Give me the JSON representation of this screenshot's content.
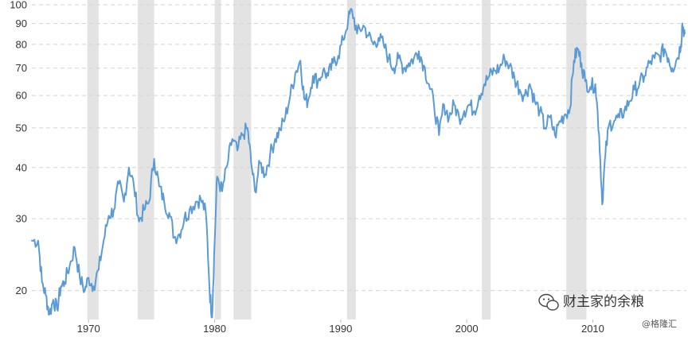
{
  "chart_data": {
    "type": "line",
    "title": "",
    "xlabel": "",
    "ylabel": "",
    "y_scale": "log",
    "ylim": [
      17,
      100
    ],
    "xlim": [
      1965.5,
      2017.3
    ],
    "grid": "horizontal-dashed",
    "y_ticks": [
      {
        "value": 20,
        "label": "20"
      },
      {
        "value": 30,
        "label": "30"
      },
      {
        "value": 40,
        "label": "40"
      },
      {
        "value": 50,
        "label": "50"
      },
      {
        "value": 60,
        "label": "60"
      },
      {
        "value": 70,
        "label": "70"
      },
      {
        "value": 80,
        "label": "80"
      },
      {
        "value": 90,
        "label": "90"
      },
      {
        "value": 100,
        "label": "100"
      }
    ],
    "x_ticks": [
      {
        "value": 1970,
        "label": "1970"
      },
      {
        "value": 1980,
        "label": "1980"
      },
      {
        "value": 1990,
        "label": "1990"
      },
      {
        "value": 2000,
        "label": "2000"
      },
      {
        "value": 2010,
        "label": "2010"
      }
    ],
    "recessions": [
      [
        1969.9,
        1970.8
      ],
      [
        1973.9,
        1975.2
      ],
      [
        1980.0,
        1980.5
      ],
      [
        1981.5,
        1982.9
      ],
      [
        1990.5,
        1991.2
      ],
      [
        2001.2,
        2001.9
      ],
      [
        2007.9,
        2009.5
      ]
    ],
    "series": [
      {
        "color": "#5b9bd5",
        "points": [
          [
            1965.5,
            26.5
          ],
          [
            1966.0,
            26.5
          ],
          [
            1966.3,
            21.0
          ],
          [
            1966.6,
            19.5
          ],
          [
            1966.9,
            17.5
          ],
          [
            1967.2,
            19.0
          ],
          [
            1967.5,
            18.0
          ],
          [
            1967.8,
            20.5
          ],
          [
            1968.1,
            21.0
          ],
          [
            1968.5,
            23.0
          ],
          [
            1968.9,
            25.5
          ],
          [
            1969.3,
            21.5
          ],
          [
            1969.7,
            20.0
          ],
          [
            1970.0,
            21.5
          ],
          [
            1970.4,
            20.5
          ],
          [
            1970.8,
            22.5
          ],
          [
            1971.2,
            26.5
          ],
          [
            1971.6,
            30.5
          ],
          [
            1972.0,
            31.5
          ],
          [
            1972.4,
            36.5
          ],
          [
            1972.8,
            33.0
          ],
          [
            1973.2,
            40.0
          ],
          [
            1973.6,
            36.0
          ],
          [
            1974.0,
            29.5
          ],
          [
            1974.4,
            31.5
          ],
          [
            1974.8,
            33.0
          ],
          [
            1975.2,
            42.0
          ],
          [
            1975.6,
            36.0
          ],
          [
            1976.0,
            33.0
          ],
          [
            1976.4,
            31.0
          ],
          [
            1976.8,
            27.0
          ],
          [
            1977.2,
            27.5
          ],
          [
            1977.6,
            30.0
          ],
          [
            1978.0,
            31.5
          ],
          [
            1978.5,
            33.0
          ],
          [
            1978.9,
            33.5
          ],
          [
            1979.3,
            31.0
          ],
          [
            1979.6,
            20.0
          ],
          [
            1979.8,
            17.2
          ],
          [
            1980.0,
            26.0
          ],
          [
            1980.2,
            38.0
          ],
          [
            1980.6,
            35.0
          ],
          [
            1981.0,
            40.5
          ],
          [
            1981.4,
            47.0
          ],
          [
            1981.8,
            44.0
          ],
          [
            1982.2,
            48.0
          ],
          [
            1982.6,
            50.0
          ],
          [
            1982.9,
            41.0
          ],
          [
            1983.2,
            35.0
          ],
          [
            1983.6,
            41.0
          ],
          [
            1984.0,
            38.5
          ],
          [
            1984.4,
            43.0
          ],
          [
            1984.8,
            47.0
          ],
          [
            1985.2,
            49.5
          ],
          [
            1985.6,
            53.0
          ],
          [
            1986.0,
            60.0
          ],
          [
            1986.4,
            68.0
          ],
          [
            1986.8,
            73.0
          ],
          [
            1987.1,
            59.0
          ],
          [
            1987.4,
            58.0
          ],
          [
            1987.8,
            67.0
          ],
          [
            1988.2,
            65.0
          ],
          [
            1988.6,
            69.0
          ],
          [
            1989.0,
            67.0
          ],
          [
            1989.4,
            72.0
          ],
          [
            1989.8,
            75.0
          ],
          [
            1990.2,
            82.0
          ],
          [
            1990.6,
            92.0
          ],
          [
            1990.9,
            97.0
          ],
          [
            1991.3,
            85.0
          ],
          [
            1991.8,
            89.0
          ],
          [
            1992.2,
            84.0
          ],
          [
            1992.6,
            80.0
          ],
          [
            1993.0,
            83.0
          ],
          [
            1993.4,
            80.0
          ],
          [
            1993.8,
            74.0
          ],
          [
            1994.2,
            70.0
          ],
          [
            1994.6,
            74.0
          ],
          [
            1995.0,
            70.0
          ],
          [
            1995.4,
            72.0
          ],
          [
            1995.8,
            74.0
          ],
          [
            1996.2,
            77.0
          ],
          [
            1996.6,
            71.0
          ],
          [
            1997.0,
            64.0
          ],
          [
            1997.4,
            57.0
          ],
          [
            1997.8,
            48.0
          ],
          [
            1998.2,
            57.0
          ],
          [
            1998.6,
            53.0
          ],
          [
            1999.0,
            57.0
          ],
          [
            1999.4,
            53.0
          ],
          [
            1999.8,
            55.0
          ],
          [
            2000.2,
            57.0
          ],
          [
            2000.6,
            55.0
          ],
          [
            2001.0,
            60.0
          ],
          [
            2001.4,
            64.0
          ],
          [
            2001.8,
            67.0
          ],
          [
            2002.2,
            69.0
          ],
          [
            2002.6,
            70.0
          ],
          [
            2003.0,
            74.0
          ],
          [
            2003.4,
            71.0
          ],
          [
            2003.8,
            66.0
          ],
          [
            2004.2,
            62.0
          ],
          [
            2004.6,
            60.0
          ],
          [
            2005.0,
            64.0
          ],
          [
            2005.4,
            58.0
          ],
          [
            2005.8,
            55.0
          ],
          [
            2006.2,
            50.0
          ],
          [
            2006.6,
            53.0
          ],
          [
            2007.0,
            48.0
          ],
          [
            2007.4,
            52.0
          ],
          [
            2007.8,
            54.0
          ],
          [
            2008.2,
            56.0
          ],
          [
            2008.5,
            73.0
          ],
          [
            2008.8,
            78.0
          ],
          [
            2009.1,
            72.0
          ],
          [
            2009.4,
            65.0
          ],
          [
            2009.8,
            63.0
          ],
          [
            2010.2,
            64.0
          ],
          [
            2010.5,
            48.0
          ],
          [
            2010.75,
            32.5
          ],
          [
            2011.0,
            43.0
          ],
          [
            2011.3,
            51.0
          ],
          [
            2011.7,
            52.0
          ],
          [
            2012.1,
            53.0
          ],
          [
            2012.5,
            55.0
          ],
          [
            2012.9,
            58.0
          ],
          [
            2013.3,
            62.0
          ],
          [
            2013.7,
            64.0
          ],
          [
            2014.1,
            67.0
          ],
          [
            2014.5,
            72.0
          ],
          [
            2014.9,
            74.0
          ],
          [
            2015.3,
            75.0
          ],
          [
            2015.7,
            78.0
          ],
          [
            2016.0,
            74.0
          ],
          [
            2016.3,
            70.0
          ],
          [
            2016.7,
            74.0
          ],
          [
            2017.0,
            80.0
          ],
          [
            2017.1,
            90.0
          ],
          [
            2017.3,
            85.0
          ]
        ]
      }
    ]
  },
  "watermark": {
    "main": "财主家的余粮",
    "sub": "@格隆汇",
    "icon": "wechat-icon"
  }
}
